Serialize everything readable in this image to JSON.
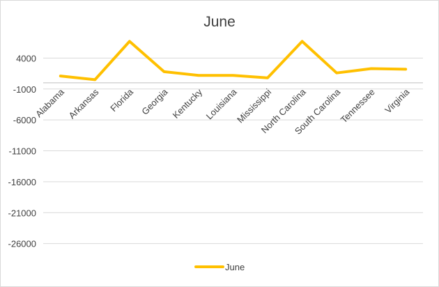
{
  "chart_data": {
    "type": "line",
    "title": "June",
    "categories": [
      "Alabama",
      "Arkansas",
      "Florida",
      "Georgia",
      "Kentucky",
      "Louisiana",
      "Mississippi",
      "North Carolina",
      "South Carolina",
      "Tennessee",
      "Virginia"
    ],
    "series": [
      {
        "name": "June",
        "color": "#FFC000",
        "values": [
          1100,
          500,
          6700,
          1800,
          1200,
          1200,
          800,
          6700,
          1600,
          2300,
          2200
        ]
      }
    ],
    "ylim": [
      -31000,
      9000
    ],
    "yticks": [
      4000,
      -1000,
      -6000,
      -11000,
      -16000,
      -21000,
      -26000
    ],
    "grid": true,
    "legend": "bottom"
  }
}
